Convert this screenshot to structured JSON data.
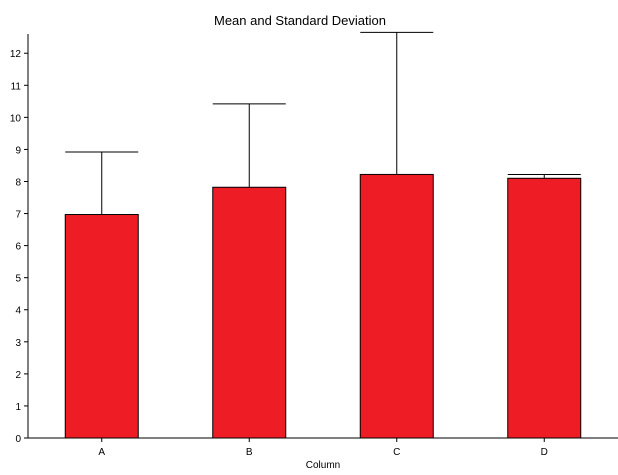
{
  "chart_data": {
    "type": "bar",
    "title": "Mean and Standard Deviation",
    "xlabel": "Column",
    "ylabel": "",
    "categories": [
      "A",
      "B",
      "C",
      "D"
    ],
    "series": [
      {
        "values": [
          6.97,
          7.82,
          8.22,
          8.1
        ],
        "error_plus": [
          1.95,
          2.6,
          4.43,
          0.12
        ]
      }
    ],
    "ylim": [
      0,
      12.6
    ],
    "yticks": [
      0,
      1,
      2,
      3,
      4,
      5,
      6,
      7,
      8,
      9,
      10,
      11,
      12
    ],
    "grid": false,
    "bar_color": "#ee1c24",
    "bar_edge_color": "#000000"
  }
}
